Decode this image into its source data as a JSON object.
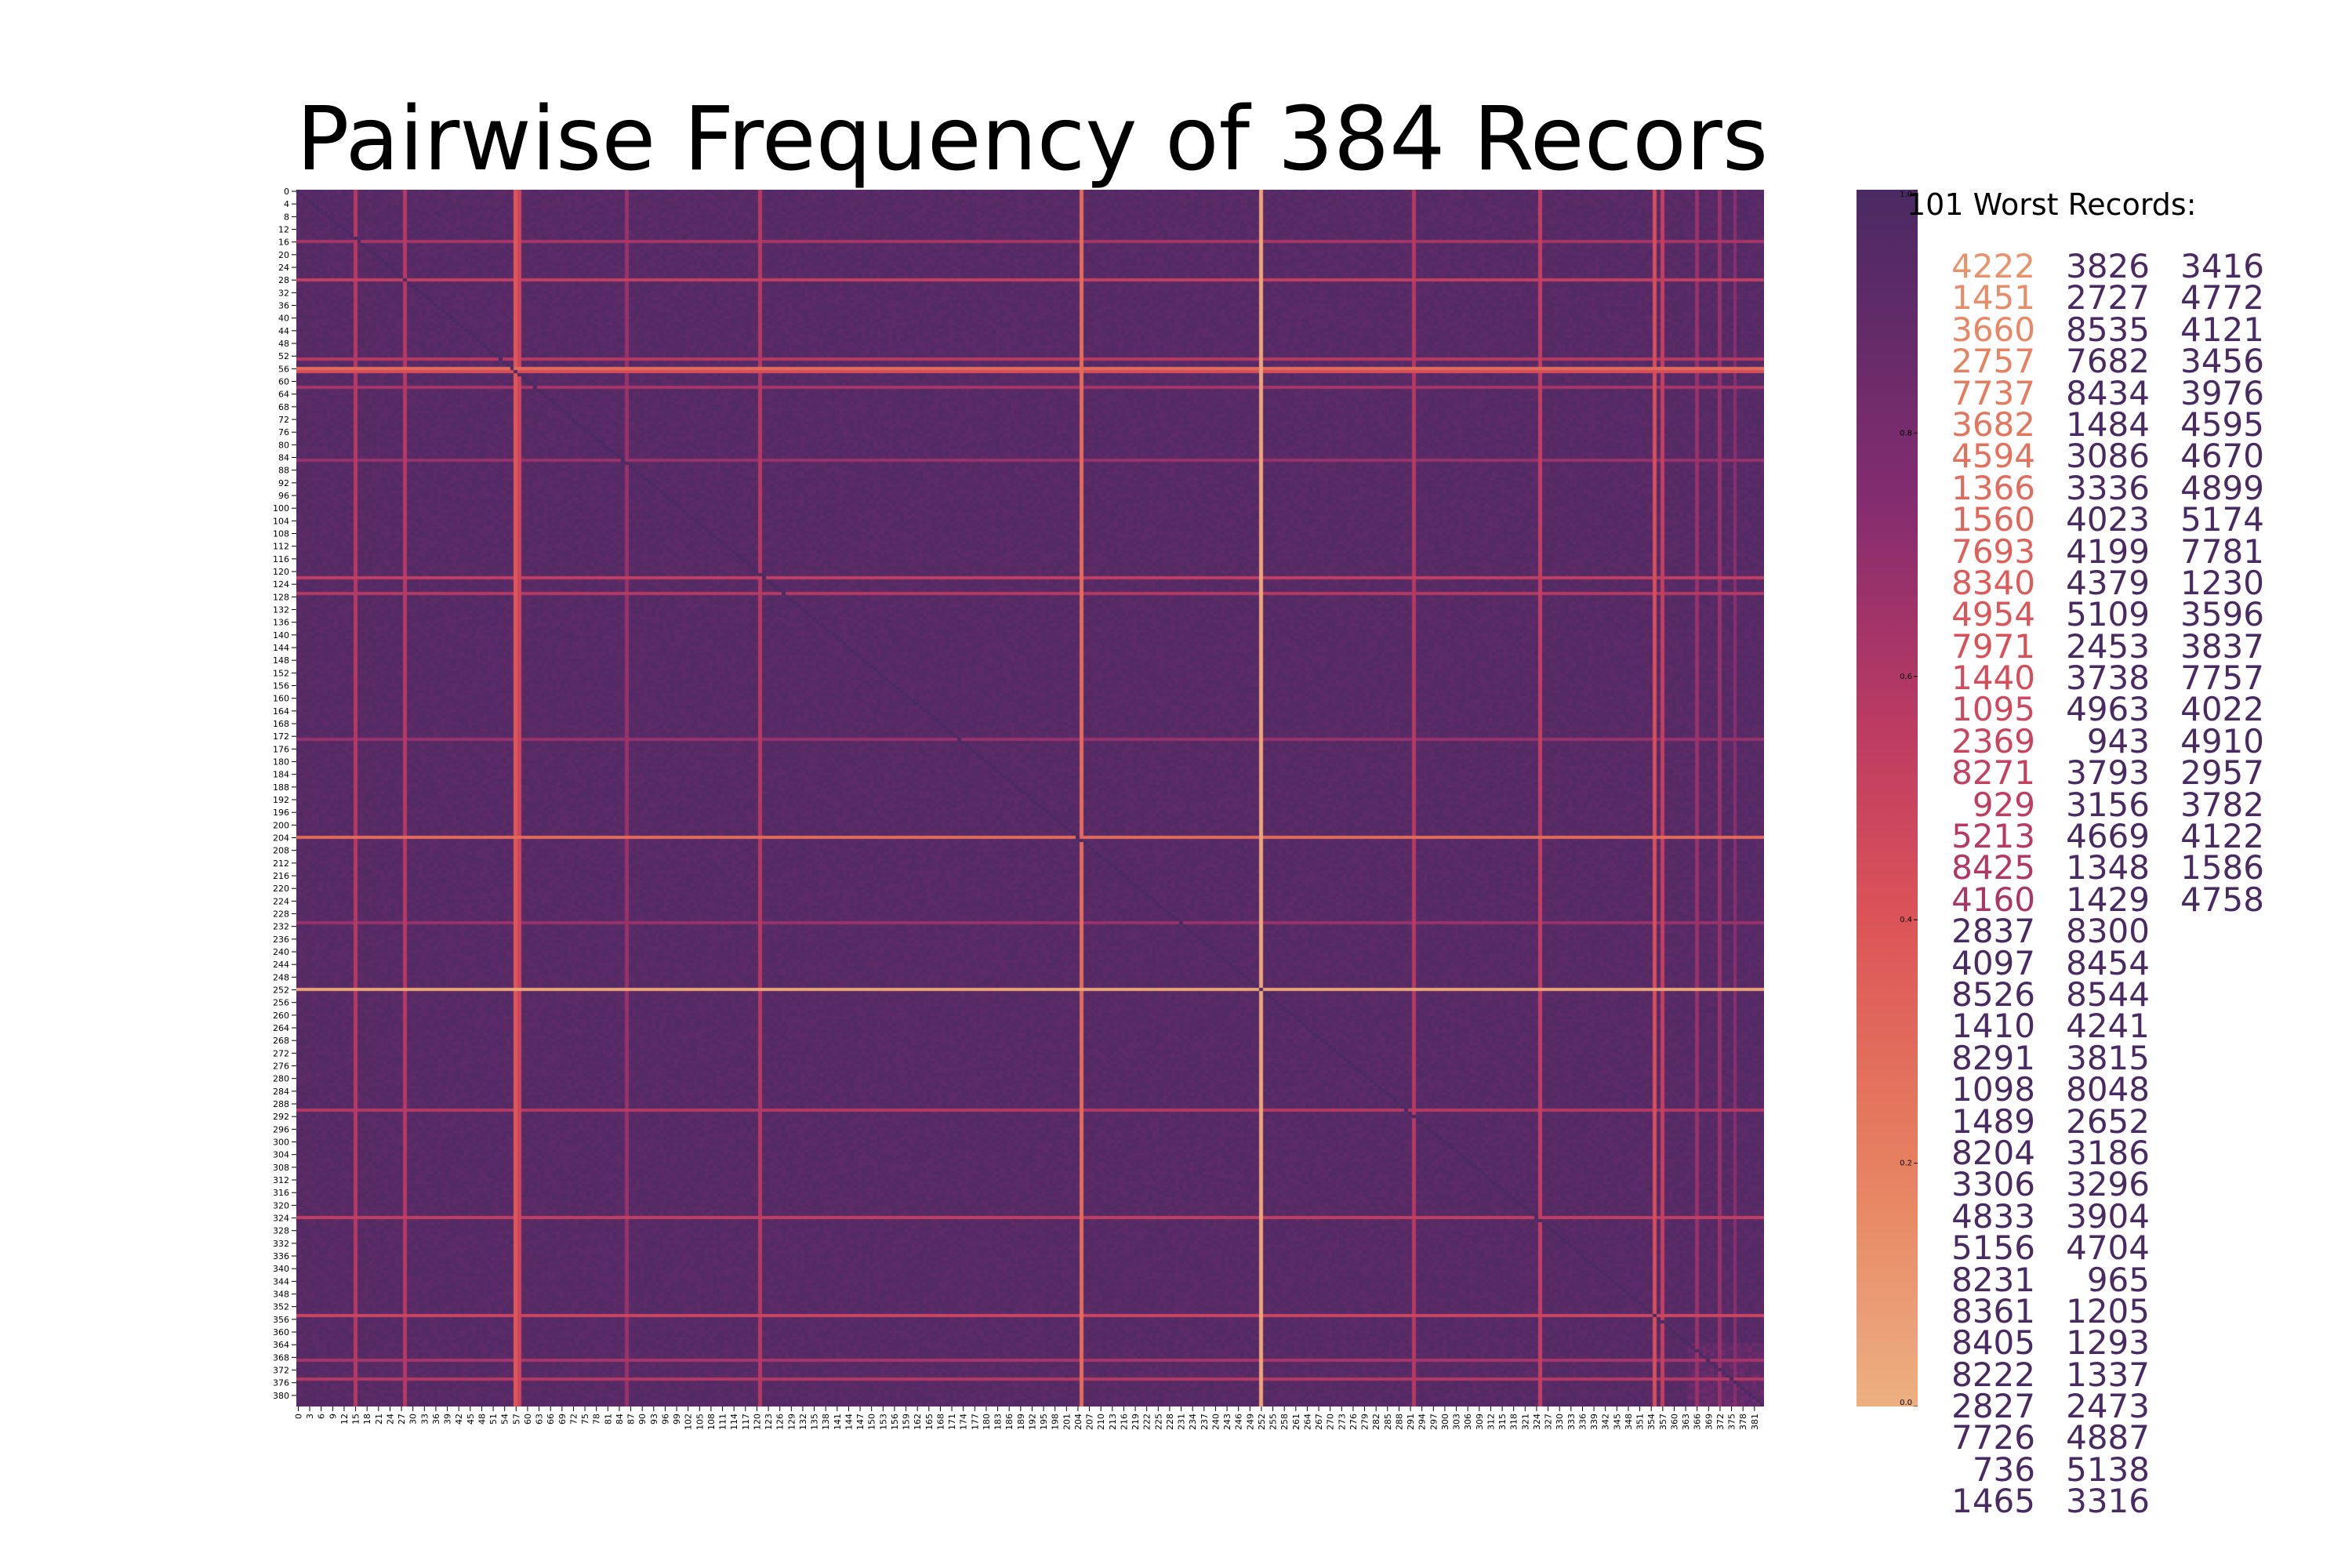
{
  "chart_data": {
    "type": "heatmap",
    "title": "Pairwise Frequency of 384 Recors",
    "n_records": 384,
    "x_tick_step": 3,
    "y_tick_step": 4,
    "colorbar": {
      "range": [
        0.0,
        1.0
      ],
      "ticks": [
        "0.0",
        "0.2",
        "0.4",
        "0.6",
        "0.8",
        "1.0"
      ],
      "colormap": "flare",
      "low_color": "#edb081",
      "high_color": "#4a2a62"
    },
    "base_value": 0.97,
    "highlight_rows": [
      {
        "index": 56,
        "value": 0.3
      },
      {
        "index": 57,
        "value": 0.45
      },
      {
        "index": 204,
        "value": 0.3
      },
      {
        "index": 252,
        "value": 0.05
      },
      {
        "index": 16,
        "value": 0.65
      },
      {
        "index": 28,
        "value": 0.55
      },
      {
        "index": 53,
        "value": 0.6
      },
      {
        "index": 62,
        "value": 0.65
      },
      {
        "index": 85,
        "value": 0.7
      },
      {
        "index": 122,
        "value": 0.55
      },
      {
        "index": 127,
        "value": 0.6
      },
      {
        "index": 173,
        "value": 0.7
      },
      {
        "index": 231,
        "value": 0.7
      },
      {
        "index": 290,
        "value": 0.6
      },
      {
        "index": 324,
        "value": 0.55
      },
      {
        "index": 355,
        "value": 0.5
      },
      {
        "index": 369,
        "value": 0.65
      },
      {
        "index": 375,
        "value": 0.6
      }
    ],
    "highlight_cols": [
      {
        "index": 15,
        "value": 0.6
      },
      {
        "index": 28,
        "value": 0.6
      },
      {
        "index": 57,
        "value": 0.4
      },
      {
        "index": 58,
        "value": 0.5
      },
      {
        "index": 86,
        "value": 0.7
      },
      {
        "index": 121,
        "value": 0.6
      },
      {
        "index": 205,
        "value": 0.3
      },
      {
        "index": 252,
        "value": 0.05
      },
      {
        "index": 292,
        "value": 0.6
      },
      {
        "index": 325,
        "value": 0.55
      },
      {
        "index": 355,
        "value": 0.45
      },
      {
        "index": 357,
        "value": 0.55
      },
      {
        "index": 366,
        "value": 0.7
      },
      {
        "index": 372,
        "value": 0.7
      },
      {
        "index": 376,
        "value": 0.75
      }
    ],
    "legend": {
      "title": "101 Worst Records:",
      "columns": [
        [
          "4222",
          "1451",
          "3660",
          "2757",
          "7737",
          "3682",
          "4594",
          "1366",
          "1560",
          "7693",
          "8340",
          "4954",
          "7971",
          "1440",
          "1095",
          "2369",
          "8271",
          "929",
          "5213",
          "8425",
          "4160",
          "2837",
          "4097",
          "8526",
          "1410",
          "8291",
          "1098",
          "1489",
          "8204",
          "3306",
          "4833",
          "5156",
          "8231",
          "8361",
          "8405",
          "8222",
          "2827",
          "7726",
          "736",
          "1465"
        ],
        [
          "3826",
          "2727",
          "8535",
          "7682",
          "8434",
          "1484",
          "3086",
          "3336",
          "4023",
          "4199",
          "4379",
          "5109",
          "2453",
          "3738",
          "4963",
          "943",
          "3793",
          "3156",
          "4669",
          "1348",
          "1429",
          "8300",
          "8454",
          "8544",
          "4241",
          "3815",
          "8048",
          "2652",
          "3186",
          "3296",
          "3904",
          "4704",
          "965",
          "1205",
          "1293",
          "1337",
          "2473",
          "4887",
          "5138",
          "3316"
        ],
        [
          "3416",
          "4772",
          "4121",
          "3456",
          "3976",
          "4595",
          "4670",
          "4899",
          "5174",
          "7781",
          "1230",
          "3596",
          "3837",
          "7757",
          "4022",
          "4910",
          "2957",
          "3782",
          "4122",
          "1586",
          "4758"
        ]
      ]
    }
  }
}
